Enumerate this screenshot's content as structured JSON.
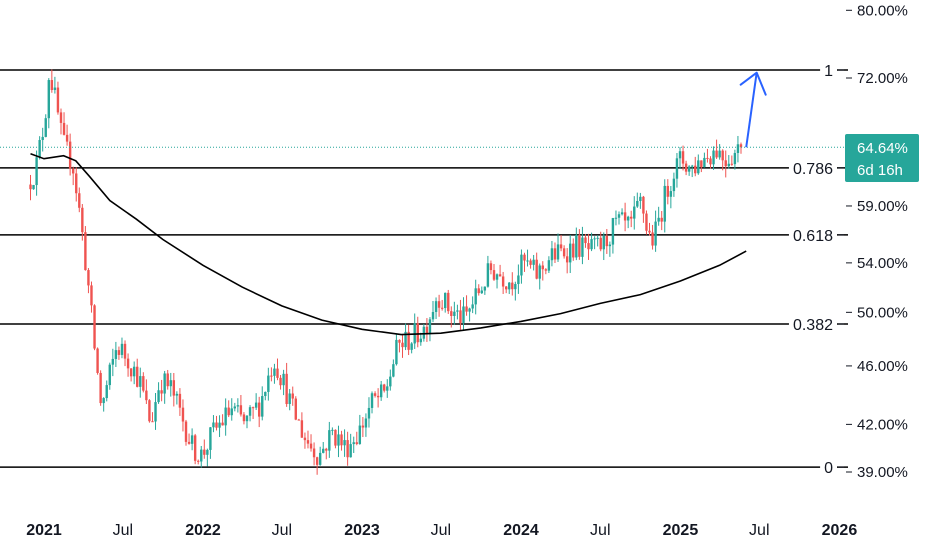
{
  "chart_data": {
    "type": "candlestick",
    "y_scale": "log",
    "y_unit": "%",
    "y_ticks": [
      "80.00%",
      "72.00%",
      "59.00%",
      "54.00%",
      "50.00%",
      "46.00%",
      "42.00%",
      "39.00%"
    ],
    "y_tick_values": [
      80,
      72,
      59,
      54,
      50,
      46,
      42,
      39
    ],
    "x_ticks": [
      {
        "label": "2021",
        "date": "2021-01-01",
        "bold": true
      },
      {
        "label": "Jul",
        "date": "2021-07-01",
        "bold": false
      },
      {
        "label": "2022",
        "date": "2022-01-01",
        "bold": true
      },
      {
        "label": "Jul",
        "date": "2022-07-01",
        "bold": false
      },
      {
        "label": "2023",
        "date": "2023-01-01",
        "bold": true
      },
      {
        "label": "Jul",
        "date": "2023-07-01",
        "bold": false
      },
      {
        "label": "2024",
        "date": "2024-01-01",
        "bold": true
      },
      {
        "label": "Jul",
        "date": "2024-07-01",
        "bold": false
      },
      {
        "label": "2025",
        "date": "2025-01-01",
        "bold": true
      },
      {
        "label": "Jul",
        "date": "2025-07-01",
        "bold": false
      },
      {
        "label": "2026",
        "date": "2026-01-01",
        "bold": true
      }
    ],
    "fib_levels": [
      {
        "label": "1",
        "value": 72.9
      },
      {
        "label": "0.786",
        "value": 62.6
      },
      {
        "label": "0.618",
        "value": 56.4
      },
      {
        "label": "0.382",
        "value": 49.1
      },
      {
        "label": "0",
        "value": 39.3
      }
    ],
    "last_price": {
      "value_label": "64.64%",
      "countdown": "6d 16h",
      "value": 64.64,
      "color": "#26a69a"
    },
    "colors": {
      "up": "#26a69a",
      "down": "#ef5350",
      "ma": "#000000",
      "arrow": "#2962ff",
      "fib": "#000000"
    },
    "moving_average": [
      [
        "2020-12-01",
        64.0
      ],
      [
        "2021-01-01",
        63.5
      ],
      [
        "2021-02-15",
        63.8
      ],
      [
        "2021-03-15",
        63.3
      ],
      [
        "2021-04-15",
        61.8
      ],
      [
        "2021-06-01",
        59.5
      ],
      [
        "2021-08-01",
        57.8
      ],
      [
        "2021-10-01",
        56.0
      ],
      [
        "2022-01-01",
        53.8
      ],
      [
        "2022-04-01",
        52.0
      ],
      [
        "2022-07-01",
        50.5
      ],
      [
        "2022-10-01",
        49.4
      ],
      [
        "2023-01-01",
        48.7
      ],
      [
        "2023-04-01",
        48.3
      ],
      [
        "2023-07-01",
        48.4
      ],
      [
        "2023-10-01",
        48.8
      ],
      [
        "2024-01-01",
        49.3
      ],
      [
        "2024-04-01",
        49.9
      ],
      [
        "2024-07-01",
        50.7
      ],
      [
        "2024-10-01",
        51.4
      ],
      [
        "2025-01-01",
        52.5
      ],
      [
        "2025-04-01",
        53.8
      ],
      [
        "2025-06-01",
        55.0
      ]
    ],
    "projection_arrow": {
      "from": [
        "2025-06-01",
        64.64
      ],
      "to": [
        "2025-06-25",
        72.6
      ]
    },
    "weekly_anchors": [
      [
        "2020-12-01",
        61.0
      ],
      [
        "2020-12-20",
        62.5
      ],
      [
        "2021-01-10",
        67.5
      ],
      [
        "2021-01-20",
        73.0
      ],
      [
        "2021-02-01",
        70.0
      ],
      [
        "2021-02-20",
        65.0
      ],
      [
        "2021-03-15",
        63.0
      ],
      [
        "2021-04-01",
        58.0
      ],
      [
        "2021-04-20",
        52.0
      ],
      [
        "2021-05-05",
        47.0
      ],
      [
        "2021-05-20",
        43.0
      ],
      [
        "2021-06-05",
        45.0
      ],
      [
        "2021-06-25",
        47.5
      ],
      [
        "2021-07-20",
        46.5
      ],
      [
        "2021-08-15",
        45.0
      ],
      [
        "2021-09-10",
        42.0
      ],
      [
        "2021-10-01",
        45.0
      ],
      [
        "2021-10-25",
        44.5
      ],
      [
        "2021-11-20",
        42.5
      ],
      [
        "2021-12-15",
        40.5
      ],
      [
        "2022-01-05",
        40.0
      ],
      [
        "2022-02-01",
        41.5
      ],
      [
        "2022-03-15",
        43.0
      ],
      [
        "2022-04-15",
        42.0
      ],
      [
        "2022-05-20",
        43.5
      ],
      [
        "2022-06-20",
        46.5
      ],
      [
        "2022-07-10",
        45.0
      ],
      [
        "2022-08-01",
        43.0
      ],
      [
        "2022-09-01",
        41.0
      ],
      [
        "2022-10-01",
        40.0
      ],
      [
        "2022-11-01",
        41.5
      ],
      [
        "2022-12-01",
        40.5
      ],
      [
        "2023-01-01",
        41.5
      ],
      [
        "2023-02-01",
        43.5
      ],
      [
        "2023-03-01",
        44.0
      ],
      [
        "2023-04-01",
        47.5
      ],
      [
        "2023-05-01",
        48.0
      ],
      [
        "2023-06-01",
        48.8
      ],
      [
        "2023-07-01",
        51.5
      ],
      [
        "2023-08-01",
        50.0
      ],
      [
        "2023-09-01",
        49.5
      ],
      [
        "2023-10-01",
        51.5
      ],
      [
        "2023-11-01",
        53.5
      ],
      [
        "2023-12-15",
        52.5
      ],
      [
        "2024-01-15",
        54.0
      ],
      [
        "2024-02-15",
        53.0
      ],
      [
        "2024-03-15",
        54.5
      ],
      [
        "2024-04-15",
        55.0
      ],
      [
        "2024-05-15",
        55.5
      ],
      [
        "2024-06-15",
        55.0
      ],
      [
        "2024-07-15",
        55.5
      ],
      [
        "2024-08-15",
        57.5
      ],
      [
        "2024-09-15",
        57.0
      ],
      [
        "2024-10-10",
        59.5
      ],
      [
        "2024-10-25",
        56.5
      ],
      [
        "2024-11-08",
        56.0
      ],
      [
        "2024-12-01",
        59.5
      ],
      [
        "2024-12-20",
        62.0
      ],
      [
        "2025-01-10",
        63.5
      ],
      [
        "2025-02-01",
        62.5
      ],
      [
        "2025-03-01",
        63.5
      ],
      [
        "2025-04-01",
        64.5
      ],
      [
        "2025-04-20",
        63.5
      ],
      [
        "2025-05-10",
        64.0
      ],
      [
        "2025-05-25",
        64.64
      ]
    ]
  }
}
